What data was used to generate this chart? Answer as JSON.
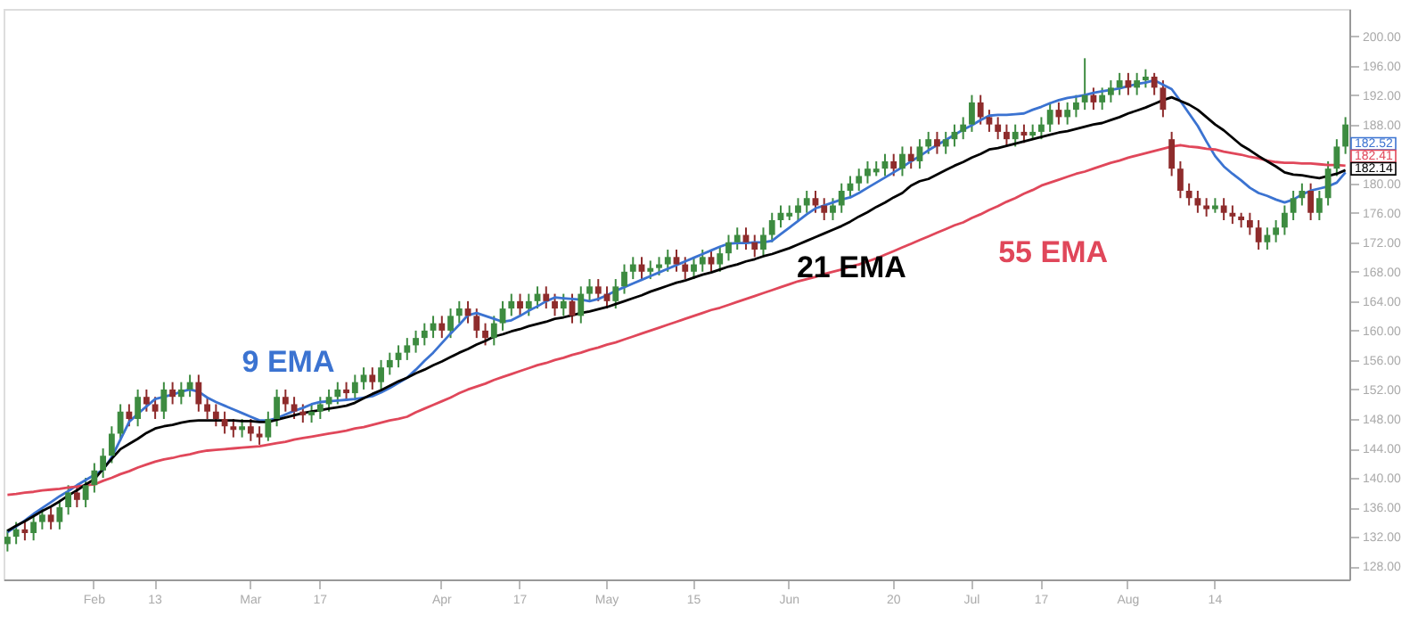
{
  "chart_data": {
    "type": "candlestick",
    "categories": [
      null,
      null,
      null,
      null,
      null,
      null,
      null,
      null,
      null,
      null,
      "Feb",
      null,
      null,
      null,
      null,
      null,
      null,
      "13",
      null,
      null,
      null,
      null,
      null,
      null,
      null,
      null,
      null,
      null,
      "Mar",
      null,
      null,
      null,
      null,
      null,
      null,
      null,
      "17",
      null,
      null,
      null,
      null,
      null,
      null,
      null,
      null,
      null,
      null,
      null,
      null,
      null,
      "Apr",
      null,
      null,
      null,
      null,
      null,
      null,
      null,
      null,
      "17",
      null,
      null,
      null,
      null,
      null,
      null,
      null,
      null,
      null,
      "May",
      null,
      null,
      null,
      null,
      null,
      null,
      null,
      null,
      null,
      "15",
      null,
      null,
      null,
      null,
      null,
      null,
      null,
      null,
      null,
      null,
      "Jun",
      null,
      null,
      null,
      null,
      null,
      null,
      null,
      null,
      null,
      null,
      null,
      "20",
      null,
      null,
      null,
      null,
      null,
      null,
      null,
      null,
      "Jul",
      null,
      null,
      null,
      null,
      null,
      null,
      null,
      "17",
      null,
      null,
      null,
      null,
      null,
      null,
      null,
      null,
      null,
      "Aug",
      null,
      null,
      null,
      null,
      null,
      null,
      null,
      null,
      null,
      "14",
      null,
      null,
      null,
      null,
      null,
      null,
      null,
      null,
      null,
      null,
      null,
      null,
      null,
      null,
      null
    ],
    "ohlc": [
      [
        131,
        133,
        130,
        132
      ],
      [
        132,
        134,
        131,
        133
      ],
      [
        133,
        134,
        131.5,
        132.5
      ],
      [
        132.5,
        135,
        131.5,
        134
      ],
      [
        134,
        136,
        133,
        135
      ],
      [
        135,
        136,
        133,
        134
      ],
      [
        134,
        137,
        133,
        136
      ],
      [
        136,
        139,
        135,
        138
      ],
      [
        138,
        139,
        136,
        137
      ],
      [
        137,
        140,
        136,
        139
      ],
      [
        139,
        142,
        138,
        141
      ],
      [
        141,
        144,
        140,
        143
      ],
      [
        143,
        147,
        142,
        146
      ],
      [
        146,
        150,
        145,
        149
      ],
      [
        149,
        150,
        147,
        148
      ],
      [
        148,
        152,
        147,
        151
      ],
      [
        151,
        152,
        149,
        150
      ],
      [
        150,
        151,
        148,
        149
      ],
      [
        149,
        153,
        148,
        152
      ],
      [
        152,
        153,
        150,
        151
      ],
      [
        151,
        153,
        150,
        152
      ],
      [
        152,
        154,
        151,
        153
      ],
      [
        153,
        154,
        149,
        150
      ],
      [
        150,
        151,
        148,
        149
      ],
      [
        149,
        150,
        147,
        148
      ],
      [
        148,
        149,
        146,
        147
      ],
      [
        147,
        148,
        145.5,
        146.5
      ],
      [
        146.5,
        148,
        145.5,
        147
      ],
      [
        147,
        148,
        145,
        146
      ],
      [
        146,
        147,
        144.5,
        145.5
      ],
      [
        145.5,
        149,
        145,
        148
      ],
      [
        148,
        152,
        147,
        151
      ],
      [
        151,
        152,
        149,
        150
      ],
      [
        150,
        151,
        148,
        149
      ],
      [
        149,
        150,
        147.5,
        148.5
      ],
      [
        148.5,
        150,
        147.5,
        149
      ],
      [
        149,
        151,
        148,
        150
      ],
      [
        150,
        152,
        149,
        151
      ],
      [
        151,
        153,
        150,
        152
      ],
      [
        152,
        153,
        150.5,
        151.5
      ],
      [
        151.5,
        154,
        150.5,
        153
      ],
      [
        153,
        155,
        152,
        154
      ],
      [
        154,
        155,
        152,
        153
      ],
      [
        153,
        156,
        152,
        155
      ],
      [
        155,
        157,
        154,
        156
      ],
      [
        156,
        158,
        155,
        157
      ],
      [
        157,
        159,
        156,
        158
      ],
      [
        158,
        160,
        157,
        159
      ],
      [
        159,
        161,
        158,
        160
      ],
      [
        160,
        162,
        159,
        161
      ],
      [
        161,
        162,
        159,
        160
      ],
      [
        160,
        163,
        159,
        162
      ],
      [
        162,
        164,
        161,
        163
      ],
      [
        163,
        164,
        161,
        162
      ],
      [
        162,
        163,
        159,
        160
      ],
      [
        160,
        161,
        158,
        159
      ],
      [
        159,
        162,
        158,
        161
      ],
      [
        161,
        164,
        160,
        163
      ],
      [
        163,
        165,
        162,
        164
      ],
      [
        164,
        165,
        162,
        163
      ],
      [
        163,
        165,
        162,
        164
      ],
      [
        164,
        166,
        163,
        165
      ],
      [
        165,
        166,
        163,
        164
      ],
      [
        164,
        165,
        162,
        163
      ],
      [
        163,
        165,
        162,
        164
      ],
      [
        164,
        165,
        161,
        162
      ],
      [
        162,
        166,
        161,
        165
      ],
      [
        165,
        167,
        164,
        166
      ],
      [
        166,
        167,
        164,
        165
      ],
      [
        165,
        166,
        163,
        164
      ],
      [
        164,
        167,
        163,
        166
      ],
      [
        166,
        169,
        165,
        168
      ],
      [
        168,
        170,
        167,
        169
      ],
      [
        169,
        170,
        167,
        168
      ],
      [
        168,
        169.5,
        167,
        168.5
      ],
      [
        168.5,
        170,
        167.5,
        169
      ],
      [
        169,
        171,
        168,
        170
      ],
      [
        170,
        171,
        168,
        169
      ],
      [
        169,
        170,
        167,
        168
      ],
      [
        168,
        170,
        167,
        169
      ],
      [
        169,
        171,
        168,
        170
      ],
      [
        170,
        171,
        168,
        169
      ],
      [
        169,
        171.5,
        168,
        170.5
      ],
      [
        170.5,
        173,
        169.5,
        172
      ],
      [
        172,
        174,
        171,
        173
      ],
      [
        173,
        174,
        171,
        172
      ],
      [
        172,
        173,
        170,
        171
      ],
      [
        171,
        174,
        170,
        173
      ],
      [
        173,
        176,
        172,
        175
      ],
      [
        175,
        177,
        174,
        176
      ],
      [
        175.5,
        177,
        175,
        176
      ],
      [
        176,
        178,
        175,
        177
      ],
      [
        177,
        179,
        176,
        178
      ],
      [
        178,
        179,
        176,
        177
      ],
      [
        177,
        178,
        175,
        176
      ],
      [
        176,
        178,
        175,
        177
      ],
      [
        177,
        180,
        176,
        179
      ],
      [
        179,
        181,
        178,
        180
      ],
      [
        180,
        182,
        179,
        181
      ],
      [
        181,
        183,
        180,
        182
      ],
      [
        181.5,
        183,
        181,
        182
      ],
      [
        182,
        184,
        181,
        183
      ],
      [
        183,
        184,
        181,
        182
      ],
      [
        182,
        185,
        181,
        184
      ],
      [
        184,
        185,
        182,
        183
      ],
      [
        183,
        186,
        182,
        185
      ],
      [
        185,
        187,
        184,
        186
      ],
      [
        186,
        187,
        184,
        185
      ],
      [
        185,
        187,
        184,
        186
      ],
      [
        186,
        188,
        185,
        187
      ],
      [
        187,
        189,
        186,
        188
      ],
      [
        188,
        192,
        187,
        191
      ],
      [
        191,
        192,
        188,
        189
      ],
      [
        189,
        190,
        187,
        188
      ],
      [
        188,
        189,
        186,
        187
      ],
      [
        187,
        188,
        185,
        186
      ],
      [
        186,
        188,
        185,
        187
      ],
      [
        187,
        188,
        185.5,
        186.5
      ],
      [
        186.5,
        188,
        186,
        187
      ],
      [
        187,
        189,
        186,
        188
      ],
      [
        188,
        191,
        187,
        190
      ],
      [
        190,
        191,
        188,
        189
      ],
      [
        189,
        191,
        188,
        190
      ],
      [
        190,
        192,
        189,
        191
      ],
      [
        191,
        197,
        190,
        192
      ],
      [
        192,
        193,
        190,
        191
      ],
      [
        191,
        193,
        190,
        192
      ],
      [
        192,
        194,
        191,
        193
      ],
      [
        193,
        195,
        192,
        194
      ],
      [
        194,
        195,
        192,
        193
      ],
      [
        193,
        195,
        192,
        194
      ],
      [
        194,
        195.5,
        193,
        194.5
      ],
      [
        194.5,
        195,
        192,
        193
      ],
      [
        193,
        194,
        189,
        190
      ],
      [
        186,
        187,
        181,
        182
      ],
      [
        182,
        183,
        178,
        179
      ],
      [
        179,
        180,
        177,
        178
      ],
      [
        178,
        179,
        176,
        177
      ],
      [
        177,
        178,
        175.5,
        176.5
      ],
      [
        176.5,
        178,
        176,
        177
      ],
      [
        177,
        178,
        175,
        176
      ],
      [
        176,
        177,
        174.5,
        175.5
      ],
      [
        175.5,
        176,
        174,
        175
      ],
      [
        175,
        176,
        173,
        174
      ],
      [
        174,
        175,
        171,
        172
      ],
      [
        172,
        174,
        171,
        173
      ],
      [
        173,
        175,
        172,
        174
      ],
      [
        174,
        177,
        173,
        176
      ],
      [
        176,
        179,
        175,
        178
      ],
      [
        178,
        180,
        177,
        179
      ],
      [
        179,
        180,
        175,
        176
      ],
      [
        176,
        179,
        175,
        178
      ],
      [
        178,
        183,
        177,
        182
      ],
      [
        182,
        186,
        181,
        185
      ],
      [
        185,
        189,
        184,
        188
      ]
    ],
    "colors": [
      "#3d8b40",
      "#3d8b40",
      "#8e2c2c",
      "#3d8b40",
      "#3d8b40",
      "#8e2c2c",
      "#3d8b40",
      "#3d8b40",
      "#8e2c2c",
      "#3d8b40",
      "#3d8b40",
      "#3d8b40",
      "#3d8b40",
      "#3d8b40",
      "#8e2c2c",
      "#3d8b40",
      "#8e2c2c",
      "#8e2c2c",
      "#3d8b40",
      "#8e2c2c",
      "#3d8b40",
      "#3d8b40",
      "#8e2c2c",
      "#8e2c2c",
      "#8e2c2c",
      "#8e2c2c",
      "#8e2c2c",
      "#3d8b40",
      "#8e2c2c",
      "#8e2c2c",
      "#3d8b40",
      "#3d8b40",
      "#8e2c2c",
      "#8e2c2c",
      "#8e2c2c",
      "#3d8b40",
      "#3d8b40",
      "#3d8b40",
      "#3d8b40",
      "#8e2c2c",
      "#3d8b40",
      "#3d8b40",
      "#8e2c2c",
      "#3d8b40",
      "#3d8b40",
      "#3d8b40",
      "#3d8b40",
      "#3d8b40",
      "#3d8b40",
      "#3d8b40",
      "#8e2c2c",
      "#3d8b40",
      "#3d8b40",
      "#8e2c2c",
      "#8e2c2c",
      "#8e2c2c",
      "#3d8b40",
      "#3d8b40",
      "#3d8b40",
      "#8e2c2c",
      "#3d8b40",
      "#3d8b40",
      "#8e2c2c",
      "#8e2c2c",
      "#3d8b40",
      "#8e2c2c",
      "#3d8b40",
      "#3d8b40",
      "#8e2c2c",
      "#8e2c2c",
      "#3d8b40",
      "#3d8b40",
      "#3d8b40",
      "#8e2c2c",
      "#3d8b40",
      "#3d8b40",
      "#3d8b40",
      "#8e2c2c",
      "#8e2c2c",
      "#3d8b40",
      "#3d8b40",
      "#8e2c2c",
      "#3d8b40",
      "#3d8b40",
      "#3d8b40",
      "#8e2c2c",
      "#8e2c2c",
      "#3d8b40",
      "#3d8b40",
      "#3d8b40",
      "#3d8b40",
      "#3d8b40",
      "#3d8b40",
      "#8e2c2c",
      "#8e2c2c",
      "#3d8b40",
      "#3d8b40",
      "#3d8b40",
      "#3d8b40",
      "#3d8b40",
      "#3d8b40",
      "#3d8b40",
      "#8e2c2c",
      "#3d8b40",
      "#8e2c2c",
      "#3d8b40",
      "#3d8b40",
      "#8e2c2c",
      "#3d8b40",
      "#3d8b40",
      "#3d8b40",
      "#3d8b40",
      "#8e2c2c",
      "#8e2c2c",
      "#8e2c2c",
      "#8e2c2c",
      "#3d8b40",
      "#8e2c2c",
      "#3d8b40",
      "#3d8b40",
      "#3d8b40",
      "#8e2c2c",
      "#3d8b40",
      "#3d8b40",
      "#3d8b40",
      "#8e2c2c",
      "#3d8b40",
      "#3d8b40",
      "#3d8b40",
      "#8e2c2c",
      "#3d8b40",
      "#3d8b40",
      "#8e2c2c",
      "#8e2c2c",
      "#8e2c2c",
      "#8e2c2c",
      "#8e2c2c",
      "#8e2c2c",
      "#8e2c2c",
      "#3d8b40",
      "#8e2c2c",
      "#8e2c2c",
      "#8e2c2c",
      "#8e2c2c",
      "#8e2c2c",
      "#3d8b40",
      "#3d8b40",
      "#3d8b40",
      "#3d8b40",
      "#3d8b40",
      "#8e2c2c",
      "#3d8b40",
      "#3d8b40",
      "#3d8b40",
      "#3d8b40"
    ],
    "series": [
      {
        "name": "9 EMA",
        "type": "line",
        "color": "#3b73d1",
        "values": [
          132.6,
          133.4,
          134.2,
          135.1,
          135.9,
          136.7,
          137.5,
          138.2,
          139.0,
          139.7,
          140.4,
          141.1,
          142.8,
          145.2,
          147.6,
          148.7,
          149.7,
          150.7,
          151.0,
          151.3,
          151.7,
          152.0,
          151.7,
          150.9,
          150.3,
          149.8,
          149.3,
          148.8,
          148.3,
          147.8,
          147.8,
          148.1,
          148.6,
          149.1,
          149.5,
          150.0,
          150.3,
          150.4,
          150.5,
          150.6,
          150.7,
          150.9,
          151.1,
          151.6,
          152.2,
          152.9,
          153.6,
          154.7,
          155.9,
          157.0,
          158.3,
          159.6,
          160.8,
          162.1,
          162.4,
          162.0,
          161.6,
          161.2,
          161.4,
          162.0,
          162.7,
          163.3,
          164.0,
          164.5,
          164.4,
          164.3,
          164.2,
          164.0,
          164.3,
          164.8,
          165.4,
          165.9,
          166.4,
          166.9,
          167.4,
          167.9,
          168.4,
          168.9,
          169.4,
          169.9,
          170.4,
          170.9,
          171.4,
          171.8,
          171.9,
          171.9,
          172.0,
          172.0,
          172.2,
          173.1,
          174.0,
          174.9,
          175.8,
          176.6,
          177.0,
          177.4,
          177.8,
          178.1,
          178.7,
          179.4,
          180.1,
          180.8,
          181.5,
          182.2,
          183.0,
          183.7,
          184.5,
          185.2,
          185.9,
          186.6,
          187.3,
          187.9,
          188.6,
          189.2,
          189.3,
          189.3,
          189.4,
          189.5,
          190.0,
          190.4,
          190.9,
          191.3,
          191.6,
          191.8,
          192.0,
          192.3,
          192.5,
          192.7,
          192.9,
          193.2,
          193.5,
          193.7,
          194.0,
          193.4,
          192.8,
          191.2,
          189.5,
          187.8,
          185.7,
          183.7,
          182.3,
          181.3,
          180.4,
          179.4,
          178.7,
          178.3,
          177.8,
          177.4,
          177.8,
          178.5,
          179.0,
          179.3,
          179.6,
          180.1,
          181.5
        ]
      },
      {
        "name": "55 EMA",
        "type": "line",
        "color": "#e0475a",
        "values": [
          137.7,
          137.8,
          138.0,
          138.1,
          138.3,
          138.4,
          138.5,
          138.7,
          138.8,
          139.0,
          139.1,
          139.6,
          140.0,
          140.5,
          140.9,
          141.4,
          141.8,
          142.2,
          142.5,
          142.7,
          143.0,
          143.2,
          143.5,
          143.7,
          143.8,
          143.9,
          144.0,
          144.1,
          144.2,
          144.3,
          144.5,
          144.7,
          144.9,
          145.2,
          145.4,
          145.6,
          145.8,
          146.0,
          146.2,
          146.4,
          146.7,
          146.9,
          147.2,
          147.5,
          147.8,
          148.0,
          148.3,
          148.9,
          149.4,
          149.9,
          150.4,
          150.9,
          151.5,
          152.0,
          152.4,
          152.8,
          153.3,
          153.7,
          154.1,
          154.5,
          154.9,
          155.3,
          155.6,
          156.0,
          156.3,
          156.7,
          157.0,
          157.4,
          157.7,
          158.1,
          158.4,
          158.8,
          159.2,
          159.6,
          160.0,
          160.4,
          160.8,
          161.2,
          161.6,
          162.0,
          162.4,
          162.8,
          163.1,
          163.5,
          163.9,
          164.3,
          164.7,
          165.1,
          165.5,
          165.9,
          166.3,
          166.7,
          167.0,
          167.3,
          167.7,
          168.0,
          168.3,
          168.7,
          169.0,
          169.4,
          169.8,
          170.3,
          170.8,
          171.3,
          171.8,
          172.3,
          172.8,
          173.3,
          173.8,
          174.3,
          174.7,
          175.3,
          175.8,
          176.4,
          176.9,
          177.5,
          178.0,
          178.6,
          179.1,
          179.7,
          180.1,
          180.5,
          180.9,
          181.3,
          181.6,
          182.0,
          182.4,
          182.8,
          183.1,
          183.5,
          183.8,
          184.1,
          184.4,
          184.7,
          185.0,
          185.2,
          185.0,
          184.9,
          184.7,
          184.6,
          184.3,
          184.1,
          183.9,
          183.6,
          183.4,
          183.1,
          182.9,
          182.8,
          182.8,
          182.7,
          182.7,
          182.6,
          182.5,
          182.5,
          182.4
        ]
      },
      {
        "name": "21 EMA",
        "type": "line",
        "color": "#000000",
        "values": [
          132.8,
          133.5,
          134.1,
          134.8,
          135.5,
          136.1,
          136.8,
          137.6,
          138.3,
          139.1,
          139.8,
          141.2,
          142.6,
          143.9,
          144.6,
          145.3,
          146.1,
          146.7,
          147.0,
          147.2,
          147.5,
          147.7,
          147.8,
          147.8,
          147.8,
          147.8,
          147.8,
          147.7,
          147.7,
          147.6,
          147.6,
          147.9,
          148.2,
          148.5,
          148.8,
          149.0,
          149.2,
          149.4,
          149.6,
          149.8,
          150.2,
          150.8,
          151.4,
          151.9,
          152.5,
          153.1,
          153.6,
          154.2,
          154.7,
          155.3,
          155.8,
          156.4,
          157.0,
          157.5,
          158.1,
          158.6,
          159.2,
          159.5,
          159.9,
          160.2,
          160.6,
          160.9,
          161.2,
          161.6,
          161.8,
          162.1,
          162.4,
          162.6,
          162.9,
          163.2,
          163.6,
          164.0,
          164.4,
          164.8,
          165.3,
          165.7,
          166.1,
          166.5,
          166.8,
          167.2,
          167.6,
          167.9,
          168.3,
          168.7,
          169.0,
          169.4,
          169.7,
          170.1,
          170.4,
          170.8,
          171.2,
          171.7,
          172.2,
          172.7,
          173.2,
          173.7,
          174.2,
          174.8,
          175.5,
          176.1,
          176.8,
          177.4,
          178.1,
          178.7,
          179.7,
          180.3,
          180.6,
          181.2,
          181.8,
          182.4,
          182.9,
          183.5,
          184.0,
          184.6,
          184.8,
          185.1,
          185.4,
          185.7,
          186.0,
          186.3,
          186.6,
          186.9,
          187.1,
          187.4,
          187.7,
          188.0,
          188.2,
          188.6,
          189.0,
          189.5,
          189.9,
          190.3,
          190.8,
          191.3,
          191.7,
          191.2,
          190.7,
          190.0,
          189.0,
          188.0,
          187.2,
          186.2,
          185.2,
          184.5,
          183.7,
          183.0,
          182.3,
          181.5,
          181.2,
          181.1,
          180.9,
          180.7,
          181.0,
          181.3,
          181.8
        ]
      }
    ],
    "annotations": [
      "182.52",
      "182.41",
      "182.14"
    ],
    "ylim": [
      126.2,
      203.7
    ],
    "yticks": [
      {
        "value": 128,
        "label": "128.00"
      },
      {
        "value": 132,
        "label": "132.00"
      },
      {
        "value": 136,
        "label": "136.00"
      },
      {
        "value": 140,
        "label": "140.00"
      },
      {
        "value": 144,
        "label": "144.00"
      },
      {
        "value": 148,
        "label": "148.00"
      },
      {
        "value": 152,
        "label": "152.00"
      },
      {
        "value": 156,
        "label": "156.00"
      },
      {
        "value": 160,
        "label": "160.00"
      },
      {
        "value": 164,
        "label": "164.00"
      },
      {
        "value": 168,
        "label": "168.00"
      },
      {
        "value": 172,
        "label": "172.00"
      },
      {
        "value": 176,
        "label": "176.00"
      },
      {
        "value": 180,
        "label": "180.00"
      },
      {
        "value": 184,
        "label": null
      },
      {
        "value": 188,
        "label": "188.00"
      },
      {
        "value": 192,
        "label": "192.00"
      },
      {
        "value": 196,
        "label": "196.00"
      },
      {
        "value": 200,
        "label": "200.00"
      }
    ],
    "grid": false
  }
}
